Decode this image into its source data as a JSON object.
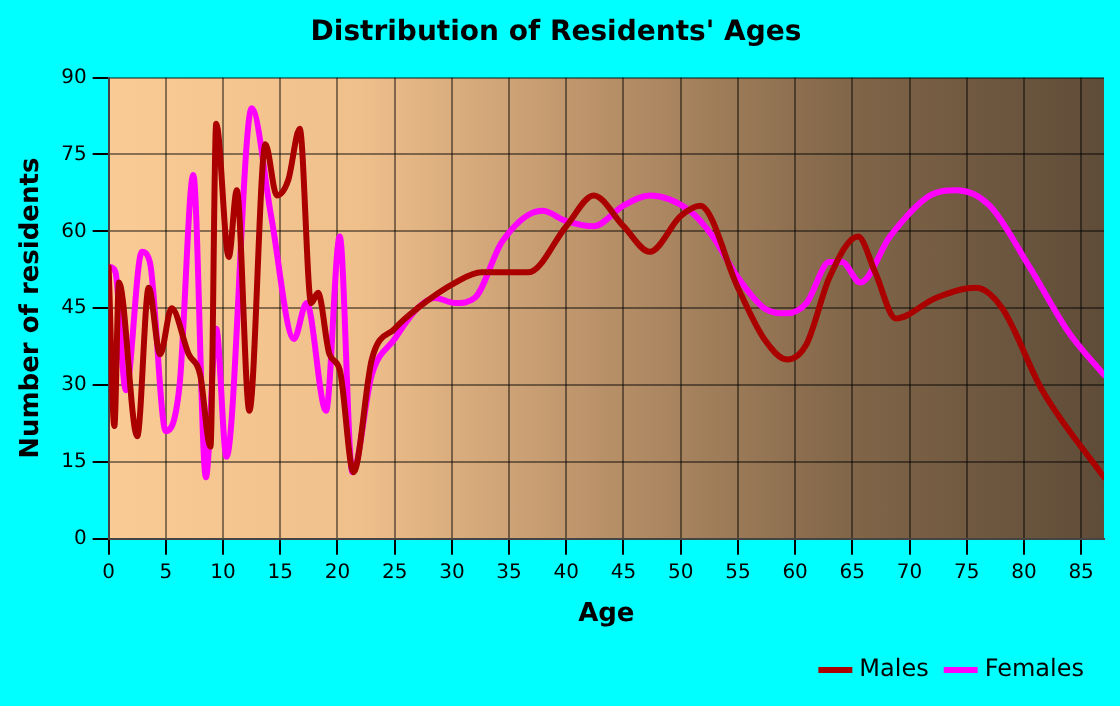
{
  "chart_data": {
    "type": "line",
    "title": "Distribution of Residents' Ages",
    "xlabel": "Age",
    "ylabel": "Number of residents",
    "xlim": [
      0,
      87
    ],
    "xticks": [
      0,
      5,
      10,
      15,
      20,
      25,
      30,
      35,
      40,
      45,
      50,
      55,
      60,
      65,
      70,
      75,
      80,
      85
    ],
    "ylim": [
      0,
      90
    ],
    "yticks": [
      0,
      15,
      30,
      45,
      60,
      75,
      90
    ],
    "grid": true,
    "legend": "bottom right",
    "marker": "none",
    "line_style": "solid",
    "series": [
      {
        "name": "Males",
        "color": "#aa0000",
        "x": [
          0,
          0.5,
          0.9,
          2.5,
          3.5,
          4.5,
          5.5,
          7,
          8,
          8.9,
          9.4,
          10.5,
          11.2,
          12.3,
          13.7,
          14.7,
          15.7,
          16.7,
          17.7,
          18.3,
          19.3,
          20.2,
          21.4,
          23,
          25,
          27,
          30.3,
          32.6,
          36.7,
          40,
          42.4,
          45,
          47.3,
          50,
          51.7,
          55,
          57.3,
          59.3,
          61,
          63,
          65.5,
          67,
          68.8,
          72.3,
          75.8,
          78.1,
          81.6,
          87
        ],
        "values": [
          53,
          22,
          50,
          20,
          49,
          36,
          45,
          36,
          32,
          18,
          81,
          55,
          68,
          25,
          77,
          67,
          70,
          80,
          46,
          48,
          36,
          33,
          13,
          35,
          41,
          45,
          50,
          52,
          52,
          61,
          67,
          61,
          56,
          63,
          65,
          49,
          39,
          35,
          38,
          51,
          59,
          52,
          43,
          47,
          49,
          45,
          29,
          12
        ]
      },
      {
        "name": "Females",
        "color": "#ff00ff",
        "x": [
          0.2,
          0.6,
          1.5,
          2.9,
          3.6,
          5,
          6.2,
          7.4,
          8.5,
          9.4,
          10.3,
          12.5,
          14.2,
          16.2,
          17.3,
          19,
          20.2,
          21.3,
          23,
          25,
          27,
          28.5,
          30.3,
          32,
          34.4,
          37.9,
          40,
          42.4,
          45,
          47.3,
          50.8,
          52.8,
          55,
          57.3,
          59.3,
          61,
          63,
          64.1,
          65.7,
          68.3,
          71.8,
          74.1,
          77,
          80.5,
          84,
          87
        ],
        "values": [
          53,
          52,
          29,
          56,
          54,
          21,
          30,
          71,
          12,
          41,
          16,
          84,
          63,
          39,
          46,
          25,
          59,
          13,
          32,
          39,
          45,
          47,
          46,
          47,
          58,
          64,
          62,
          61,
          65,
          67,
          64,
          59,
          51,
          45,
          44,
          46,
          54,
          54,
          50,
          59,
          67,
          68,
          65,
          53,
          40,
          32
        ]
      }
    ]
  }
}
